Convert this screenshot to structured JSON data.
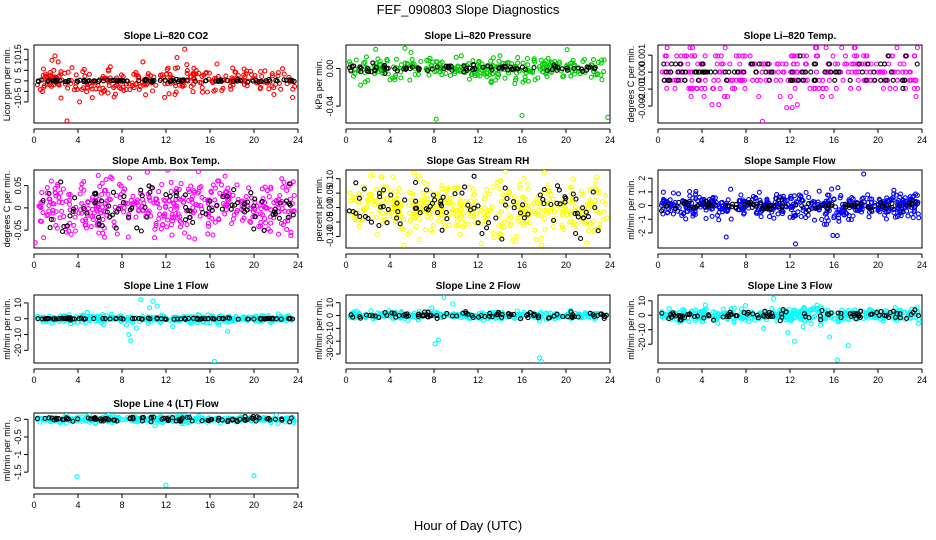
{
  "figure": {
    "title": "FEF_090803  Slope Diagnostics",
    "xlabel": "Hour of Day (UTC)"
  },
  "chart_data": [
    {
      "type": "scatter",
      "title": "Slope Li–820 CO2",
      "ylabel": "Licor ppm per min.",
      "xlim": [
        0,
        24
      ],
      "xticks": [
        "0",
        "4",
        "8",
        "12",
        "16",
        "20",
        "24"
      ],
      "ylim": [
        -20,
        17
      ],
      "yticks": [
        {
          "v": -10,
          "label": "-10"
        },
        {
          "v": -5,
          "label": "-5"
        },
        {
          "v": 0,
          "label": "0"
        },
        {
          "v": 5,
          "label": "5"
        },
        {
          "v": 10,
          "label": "10"
        },
        {
          "v": 15,
          "label": "15"
        }
      ],
      "series": [
        {
          "color": "#ff0000",
          "spread": 3.2,
          "n": 280,
          "seed": 11,
          "outliers": [
            [
              3,
              -19
            ],
            [
              13.7,
              15
            ],
            [
              13,
              11
            ],
            [
              5.3,
              -8
            ],
            [
              2.2,
              9
            ],
            [
              1.8,
              5
            ],
            [
              9.9,
              9
            ]
          ]
        },
        {
          "color": "#000000",
          "spread": 0.3,
          "n": 95,
          "seed": 12
        }
      ]
    },
    {
      "type": "scatter",
      "title": "Slope Li–820 Pressure",
      "ylabel": "kPa per min.",
      "xlim": [
        0,
        24
      ],
      "xticks": [
        "0",
        "4",
        "8",
        "12",
        "16",
        "20",
        "24"
      ],
      "ylim": [
        -0.058,
        0.025
      ],
      "yticks": [
        {
          "v": -0.04,
          "label": "-0.04"
        },
        {
          "v": 0,
          "label": "0.00"
        }
      ],
      "series": [
        {
          "color": "#00cc00",
          "spread": 0.006,
          "n": 300,
          "seed": 21,
          "outliers": [
            [
              8.2,
              -0.054
            ],
            [
              16,
              -0.05
            ],
            [
              23.8,
              -0.052
            ],
            [
              20.1,
              0.02
            ]
          ]
        },
        {
          "color": "#000000",
          "spread": 0.0015,
          "n": 90,
          "seed": 22
        }
      ]
    },
    {
      "type": "scatter",
      "title": "Slope Li–820 Temp.",
      "ylabel": "degrees C per min.",
      "xlim": [
        0,
        24
      ],
      "xticks": [
        "0",
        "4",
        "8",
        "12",
        "16",
        "20",
        "24"
      ],
      "ylim": [
        -0.003,
        0.0016
      ],
      "yticks": [
        {
          "v": -0.002,
          "label": "-0.002"
        },
        {
          "v": -0.001,
          "label": "-0.001"
        },
        {
          "v": 0,
          "label": "0.000"
        },
        {
          "v": 0.001,
          "label": "0.001"
        }
      ],
      "quantum": 0.00048,
      "series": [
        {
          "color": "#ff00ff",
          "spread": 0.0007,
          "n": 300,
          "seed": 31,
          "outliers": [
            [
              9.5,
              -0.0029
            ],
            [
              11.7,
              -0.0021
            ],
            [
              12.2,
              -0.0021
            ]
          ]
        },
        {
          "color": "#000000",
          "spread": 0.0004,
          "n": 90,
          "seed": 32
        }
      ]
    },
    {
      "type": "scatter",
      "title": "Slope Amb. Box Temp.",
      "ylabel": "degrees C per min.",
      "xlim": [
        0,
        24
      ],
      "xticks": [
        "0",
        "4",
        "8",
        "12",
        "16",
        "20",
        "24"
      ],
      "ylim": [
        -0.09,
        0.085
      ],
      "yticks": [
        {
          "v": -0.05,
          "label": "-0.05"
        },
        {
          "v": 0,
          "label": "0"
        },
        {
          "v": 0.05,
          "label": "0.05"
        }
      ],
      "series": [
        {
          "color": "#ff00ff",
          "spread": 0.03,
          "n": 420,
          "seed": 41,
          "outliers": [
            [
              10.3,
              0.08
            ],
            [
              0.1,
              -0.078
            ]
          ]
        },
        {
          "color": "#000000",
          "spread": 0.025,
          "n": 95,
          "seed": 42
        }
      ]
    },
    {
      "type": "scatter",
      "title": "Slope Gas Stream RH",
      "ylabel": "percent per min.",
      "xlim": [
        0,
        24
      ],
      "xticks": [
        "0",
        "4",
        "8",
        "12",
        "16",
        "20",
        "24"
      ],
      "ylim": [
        -0.14,
        0.13
      ],
      "yticks": [
        {
          "v": -0.1,
          "label": "-0.10"
        },
        {
          "v": -0.05,
          "label": "-0.05"
        },
        {
          "v": 0,
          "label": "0.00"
        },
        {
          "v": 0.05,
          "label": "0.05"
        },
        {
          "v": 0.1,
          "label": "0.10"
        }
      ],
      "series": [
        {
          "color": "#ffff00",
          "spread": 0.045,
          "n": 450,
          "seed": 51,
          "outliers": [
            [
              17.8,
              -0.13
            ],
            [
              6.2,
              0.12
            ]
          ]
        },
        {
          "color": "#000000",
          "spread": 0.04,
          "n": 95,
          "seed": 52
        }
      ]
    },
    {
      "type": "scatter",
      "title": "Slope Sample Flow",
      "ylabel": "ml/min per min.",
      "xlim": [
        0,
        24
      ],
      "xticks": [
        "0",
        "4",
        "8",
        "12",
        "16",
        "20",
        "24"
      ],
      "ylim": [
        -3.1,
        2.6
      ],
      "yticks": [
        {
          "v": -2,
          "label": "-2"
        },
        {
          "v": -1,
          "label": "-1"
        },
        {
          "v": 0,
          "label": "0"
        },
        {
          "v": 1,
          "label": "1"
        },
        {
          "v": 2,
          "label": "2"
        }
      ],
      "series": [
        {
          "color": "#0000ff",
          "spread": 0.45,
          "n": 480,
          "seed": 61,
          "outliers": [
            [
              12.5,
              -2.8
            ],
            [
              18.7,
              2.3
            ],
            [
              16.3,
              -2.2
            ],
            [
              6.2,
              -2.3
            ]
          ]
        },
        {
          "color": "#000000",
          "spread": 0.15,
          "n": 95,
          "seed": 62
        }
      ]
    },
    {
      "type": "scatter",
      "title": "Slope Line 1 Flow",
      "ylabel": "ml/min per min.",
      "xlim": [
        0,
        24
      ],
      "xticks": [
        "0",
        "4",
        "8",
        "12",
        "16",
        "20",
        "24"
      ],
      "ylim": [
        -28,
        15
      ],
      "yticks": [
        {
          "v": -20,
          "label": "-20"
        },
        {
          "v": -10,
          "label": "-10"
        },
        {
          "v": 0,
          "label": "0"
        },
        {
          "v": 10,
          "label": "10"
        }
      ],
      "series": [
        {
          "color": "#00ffff",
          "spread": 1.1,
          "n": 330,
          "seed": 71,
          "outliers": [
            [
              16.4,
              -27
            ],
            [
              8.6,
              -10
            ],
            [
              8.8,
              -14
            ],
            [
              9.3,
              -6
            ],
            [
              8.4,
              -4
            ],
            [
              9.7,
              12
            ],
            [
              10.8,
              11
            ],
            [
              11.2,
              8
            ],
            [
              10.5,
              7
            ],
            [
              17.6,
              -8
            ],
            [
              16.8,
              -4
            ],
            [
              12.6,
              -5
            ],
            [
              10.4,
              -3
            ]
          ]
        },
        {
          "color": "#000000",
          "spread": 0.2,
          "n": 95,
          "seed": 72
        }
      ]
    },
    {
      "type": "scatter",
      "title": "Slope Line 2 Flow",
      "ylabel": "ml/min per min.",
      "xlim": [
        0,
        24
      ],
      "xticks": [
        "0",
        "4",
        "8",
        "12",
        "16",
        "20",
        "24"
      ],
      "ylim": [
        -37,
        16
      ],
      "yticks": [
        {
          "v": -30,
          "label": "-30"
        },
        {
          "v": -20,
          "label": "-20"
        },
        {
          "v": -10,
          "label": "-10"
        },
        {
          "v": 0,
          "label": "0"
        },
        {
          "v": 10,
          "label": "10"
        }
      ],
      "series": [
        {
          "color": "#00ffff",
          "spread": 1.4,
          "n": 330,
          "seed": 81,
          "outliers": [
            [
              17.6,
              -33
            ],
            [
              17.8,
              -36
            ],
            [
              8.4,
              -19
            ],
            [
              8.1,
              -22
            ],
            [
              8.9,
              14
            ],
            [
              7.8,
              6
            ],
            [
              9.7,
              9
            ]
          ]
        },
        {
          "color": "#000000",
          "spread": 1.2,
          "n": 95,
          "seed": 82
        }
      ]
    },
    {
      "type": "scatter",
      "title": "Slope Line 3 Flow",
      "ylabel": "ml/min per min.",
      "xlim": [
        0,
        24
      ],
      "xticks": [
        "0",
        "4",
        "8",
        "12",
        "16",
        "20",
        "24"
      ],
      "ylim": [
        -33,
        14
      ],
      "yticks": [
        {
          "v": -20,
          "label": "-20"
        },
        {
          "v": -10,
          "label": "-10"
        },
        {
          "v": 0,
          "label": "0"
        },
        {
          "v": 10,
          "label": "10"
        }
      ],
      "series": [
        {
          "color": "#00ffff",
          "spread": 2.2,
          "n": 400,
          "seed": 91,
          "outliers": [
            [
              10.5,
              11.5
            ],
            [
              12.4,
              -18
            ],
            [
              11.8,
              -12
            ],
            [
              16.3,
              -31
            ],
            [
              17.3,
              -21
            ],
            [
              15.6,
              -15
            ],
            [
              13.2,
              -8
            ],
            [
              9.6,
              -9
            ]
          ]
        },
        {
          "color": "#000000",
          "spread": 1.5,
          "n": 95,
          "seed": 92
        }
      ]
    },
    {
      "type": "scatter",
      "title": "Slope Line 4 (LT) Flow",
      "ylabel": "ml/min per min.",
      "xlim": [
        0,
        24
      ],
      "xticks": [
        "0",
        "4",
        "8",
        "12",
        "16",
        "20",
        "24"
      ],
      "ylim": [
        -1.95,
        0.18
      ],
      "yticks": [
        {
          "v": -1.5,
          "label": "-1.5"
        },
        {
          "v": -1,
          "label": "-1"
        },
        {
          "v": -0.5,
          "label": "-0.5"
        },
        {
          "v": 0,
          "label": "0"
        }
      ],
      "series": [
        {
          "color": "#00ffff",
          "spread": 0.04,
          "n": 340,
          "seed": 101,
          "outliers": [
            [
              3.9,
              -1.63
            ],
            [
              12,
              -1.87
            ],
            [
              20,
              -1.6
            ],
            [
              11,
              -0.18
            ]
          ]
        },
        {
          "color": "#000000",
          "spread": 0.03,
          "n": 95,
          "seed": 102
        }
      ]
    }
  ]
}
